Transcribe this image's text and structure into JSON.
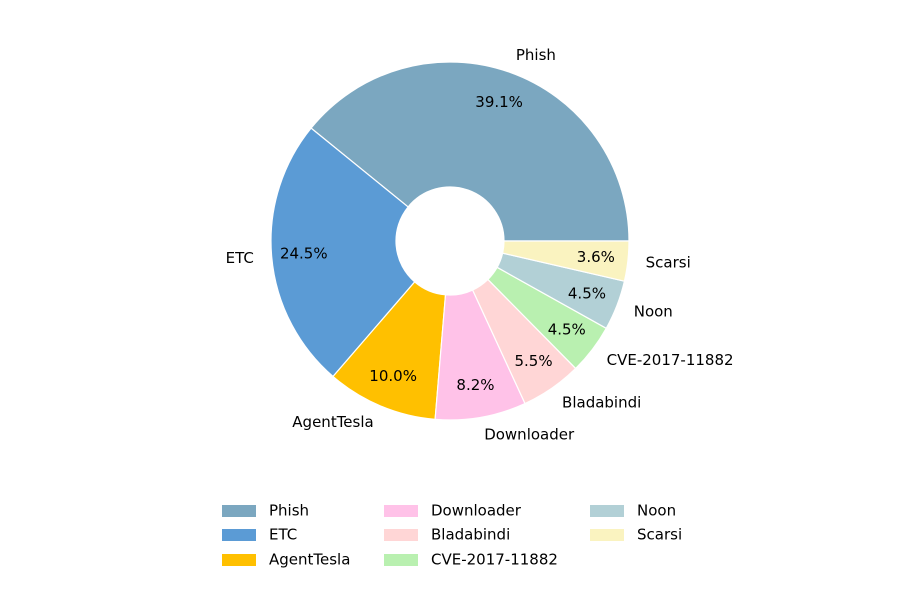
{
  "chart_data": {
    "type": "donut",
    "categories": [
      "Phish",
      "ETC",
      "AgentTesla",
      "Downloader",
      "Bladabindi",
      "CVE-2017-11882",
      "Noon",
      "Scarsi"
    ],
    "values": [
      39.1,
      24.5,
      10.0,
      8.2,
      5.5,
      4.5,
      4.5,
      3.6
    ],
    "value_labels": [
      "39.1%",
      "24.5%",
      "10.0%",
      "8.2%",
      "5.5%",
      "4.5%",
      "4.5%",
      "3.6%"
    ],
    "colors": [
      "#7ba7c0",
      "#5b9bd5",
      "#ffc000",
      "#ffc2e8",
      "#ffd6d6",
      "#b9f0b0",
      "#b2d0d6",
      "#faf3c0"
    ],
    "legend": "bottom"
  }
}
